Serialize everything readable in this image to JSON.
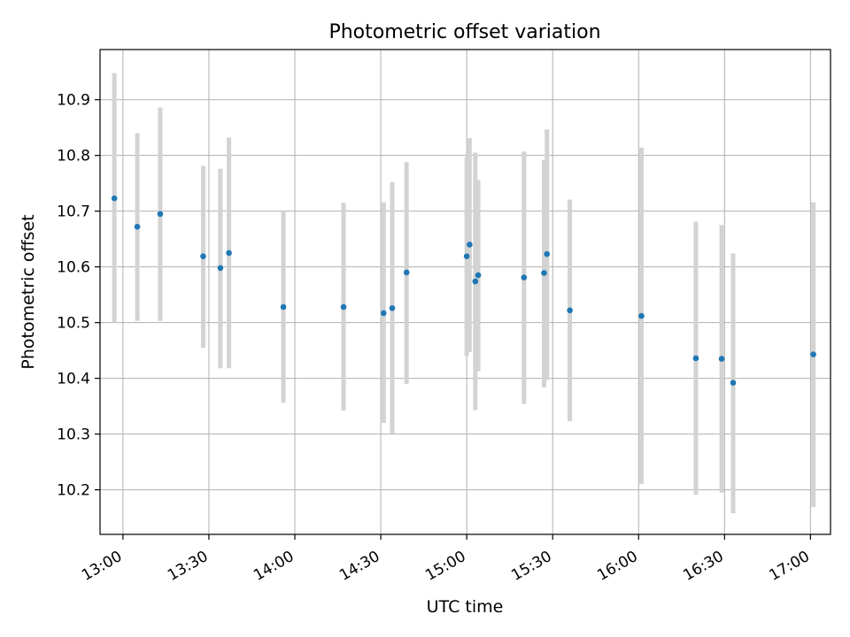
{
  "chart_data": {
    "type": "scatter",
    "title": "Photometric offset variation",
    "xlabel": "UTC time",
    "ylabel": "Photometric offset",
    "x_tick_labels": [
      "13:00",
      "13:30",
      "14:00",
      "14:30",
      "15:00",
      "15:30",
      "16:00",
      "16:30",
      "17:00"
    ],
    "y_tick_labels": [
      "10.2",
      "10.3",
      "10.4",
      "10.5",
      "10.6",
      "10.7",
      "10.8",
      "10.9"
    ],
    "x_ticks": [
      "13:00",
      "13:30",
      "14:00",
      "14:30",
      "15:00",
      "15:30",
      "16:00",
      "16:30",
      "17:00"
    ],
    "y_ticks": [
      10.2,
      10.3,
      10.4,
      10.5,
      10.6,
      10.7,
      10.8,
      10.9
    ],
    "xlim": [
      "12:52",
      "17:07"
    ],
    "ylim": [
      10.12,
      10.99
    ],
    "grid": true,
    "marker_color": "#1f77b4",
    "errorbar_color": "#d3d3d3",
    "points": [
      {
        "time": "12:57",
        "y": 10.723,
        "ylow": 10.5,
        "yhigh": 10.948
      },
      {
        "time": "13:05",
        "y": 10.672,
        "ylow": 10.503,
        "yhigh": 10.84
      },
      {
        "time": "13:13",
        "y": 10.695,
        "ylow": 10.503,
        "yhigh": 10.886
      },
      {
        "time": "13:28",
        "y": 10.619,
        "ylow": 10.455,
        "yhigh": 10.781
      },
      {
        "time": "13:34",
        "y": 10.598,
        "ylow": 10.418,
        "yhigh": 10.776
      },
      {
        "time": "13:37",
        "y": 10.625,
        "ylow": 10.418,
        "yhigh": 10.832
      },
      {
        "time": "13:56",
        "y": 10.528,
        "ylow": 10.356,
        "yhigh": 10.7
      },
      {
        "time": "14:17",
        "y": 10.528,
        "ylow": 10.342,
        "yhigh": 10.715
      },
      {
        "time": "14:31",
        "y": 10.517,
        "ylow": 10.32,
        "yhigh": 10.716
      },
      {
        "time": "14:34",
        "y": 10.526,
        "ylow": 10.301,
        "yhigh": 10.752
      },
      {
        "time": "14:39",
        "y": 10.59,
        "ylow": 10.39,
        "yhigh": 10.788
      },
      {
        "time": "15:00",
        "y": 10.619,
        "ylow": 10.44,
        "yhigh": 10.797
      },
      {
        "time": "15:01",
        "y": 10.64,
        "ylow": 10.447,
        "yhigh": 10.831
      },
      {
        "time": "15:03",
        "y": 10.574,
        "ylow": 10.343,
        "yhigh": 10.805
      },
      {
        "time": "15:04",
        "y": 10.585,
        "ylow": 10.413,
        "yhigh": 10.756
      },
      {
        "time": "15:20",
        "y": 10.581,
        "ylow": 10.354,
        "yhigh": 10.807
      },
      {
        "time": "15:27",
        "y": 10.589,
        "ylow": 10.384,
        "yhigh": 10.792
      },
      {
        "time": "15:28",
        "y": 10.623,
        "ylow": 10.397,
        "yhigh": 10.847
      },
      {
        "time": "15:36",
        "y": 10.522,
        "ylow": 10.323,
        "yhigh": 10.721
      },
      {
        "time": "16:01",
        "y": 10.512,
        "ylow": 10.21,
        "yhigh": 10.814
      },
      {
        "time": "16:20",
        "y": 10.436,
        "ylow": 10.191,
        "yhigh": 10.681
      },
      {
        "time": "16:29",
        "y": 10.435,
        "ylow": 10.195,
        "yhigh": 10.675
      },
      {
        "time": "16:33",
        "y": 10.392,
        "ylow": 10.158,
        "yhigh": 10.624
      },
      {
        "time": "17:01",
        "y": 10.443,
        "ylow": 10.169,
        "yhigh": 10.716
      }
    ]
  }
}
